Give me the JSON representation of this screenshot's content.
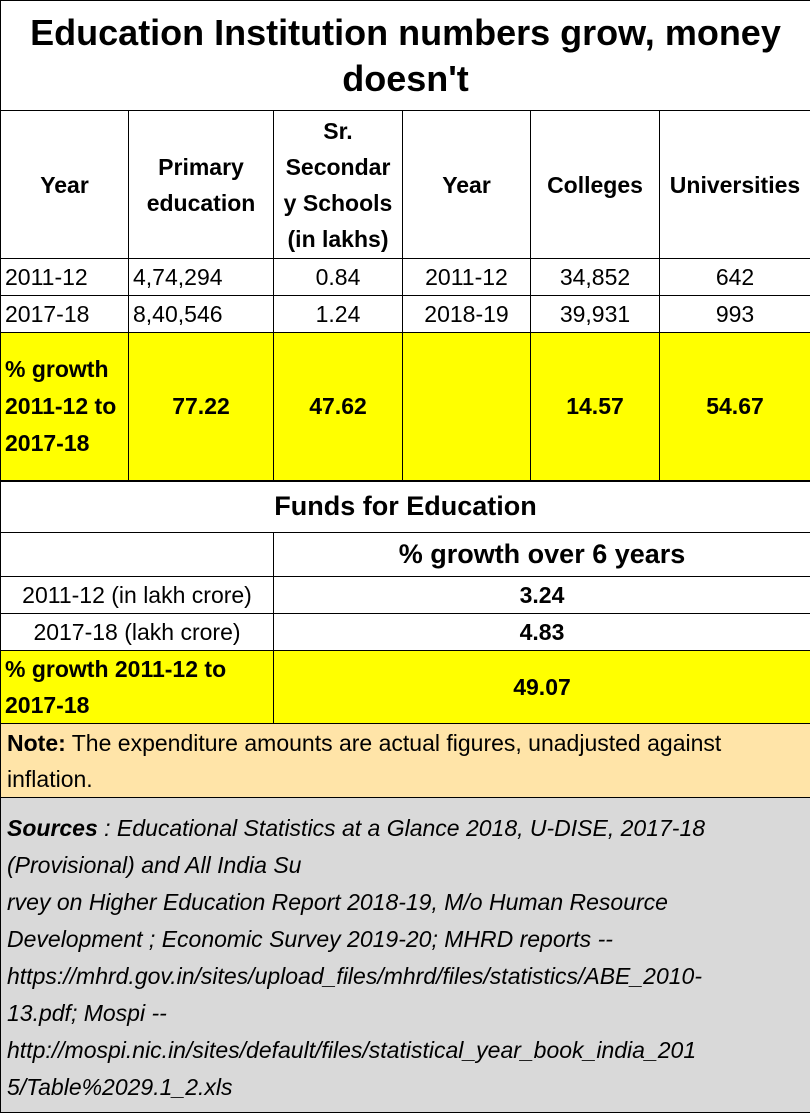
{
  "title": "Education Institution numbers grow, money doesn't",
  "institutions_table": {
    "headers": [
      "Year",
      "Primary education",
      "Sr. Secondar y Schools (in lakhs)",
      "Year",
      "Colleges",
      "Universities"
    ],
    "rows": [
      [
        "2011-12",
        "4,74,294",
        "0.84",
        "2011-12",
        "34,852",
        "642"
      ],
      [
        "2017-18",
        "8,40,546",
        "1.24",
        "2018-19",
        "39,931",
        "993"
      ]
    ],
    "growth_row": {
      "label": "% growth 2011-12 to 2017-18",
      "values": [
        "77.22",
        "47.62",
        "",
        "14.57",
        "54.67"
      ]
    }
  },
  "funds_table": {
    "title": "Funds for Education",
    "column_header": "% growth over 6 years",
    "rows": [
      {
        "label": "2011-12 (in lakh crore)",
        "value": "3.24"
      },
      {
        "label": "2017-18 (lakh crore)",
        "value": "4.83"
      }
    ],
    "growth_row": {
      "label": "% growth 2011-12 to 2017-18",
      "value": "49.07"
    }
  },
  "note": {
    "label": "Note:",
    "text": " The expenditure amounts are actual figures, unadjusted against inflation."
  },
  "sources": {
    "label": "Sources",
    "lines": [
      " : Educational Statistics at a Glance 2018, U-DISE, 2017-18",
      "(Provisional) and All India Su",
      "rvey on Higher Education Report 2018-19, M/o Human Resource",
      "Development ; Economic Survey 2019-20; MHRD reports --",
      "https://mhrd.gov.in/sites/upload_files/mhrd/files/statistics/ABE_2010-",
      "13.pdf; Mospi --",
      "http://mospi.nic.in/sites/default/files/statistical_year_book_india_201",
      "5/Table%2029.1_2.xls"
    ]
  }
}
